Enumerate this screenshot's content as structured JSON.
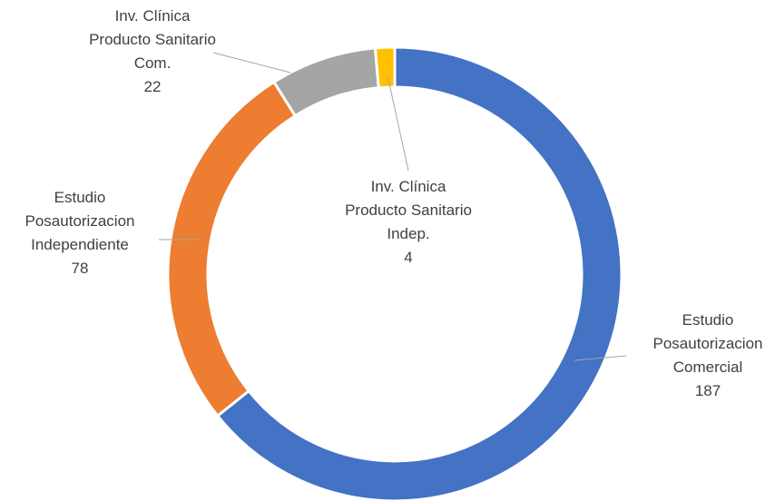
{
  "chart_data": {
    "type": "pie",
    "categories": [
      "Estudio Posautorizacion Comercial",
      "Estudio Posautorizacion Independiente",
      "Inv. Clínica Producto Sanitario Com.",
      "Inv. Clínica Producto Sanitario Indep."
    ],
    "values": [
      187,
      78,
      22,
      4
    ],
    "colors": [
      "#4472c4",
      "#ed7d31",
      "#a5a5a5",
      "#ffc000"
    ]
  }
}
